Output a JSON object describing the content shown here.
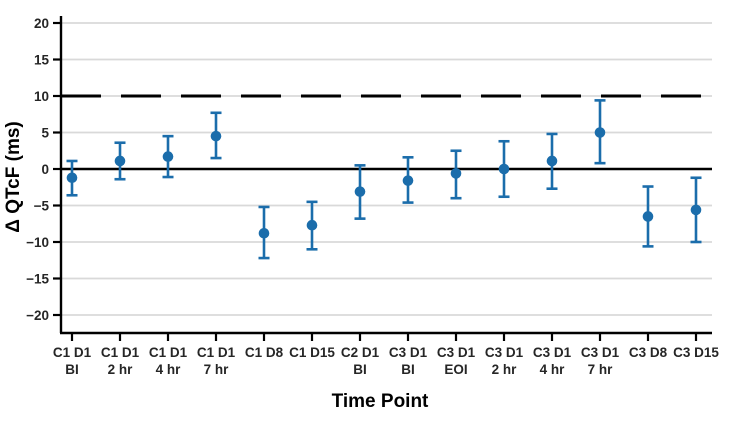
{
  "colors": {
    "point_blue": "#1b6dab",
    "grid_gray": "#d9d9d9",
    "axis_black": "#000000",
    "tick_text": "#262626",
    "background": "#ffffff"
  },
  "chart_data": {
    "type": "scatter",
    "title": "",
    "xlabel": "Time Point",
    "ylabel": "Δ QTcF (ms)",
    "ylim": [
      -22.5,
      21.5
    ],
    "grid": true,
    "legend": "none",
    "yticks": [
      {
        "value": 20,
        "label": "20"
      },
      {
        "value": 15,
        "label": "15"
      },
      {
        "value": 10,
        "label": "10"
      },
      {
        "value": 5,
        "label": "5"
      },
      {
        "value": 0,
        "label": "0"
      },
      {
        "value": -5,
        "label": "−5"
      },
      {
        "value": -10,
        "label": "−10"
      },
      {
        "value": -15,
        "label": "−15"
      },
      {
        "value": -20,
        "label": "−20"
      }
    ],
    "reference_lines": [
      {
        "y": 10,
        "style": "dashed",
        "color": "#000000"
      },
      {
        "y": 0,
        "style": "solid",
        "color": "#000000"
      }
    ],
    "categories": [
      {
        "line1": "C1 D1",
        "line2": "BI"
      },
      {
        "line1": "C1 D1",
        "line2": "2 hr"
      },
      {
        "line1": "C1 D1",
        "line2": "4 hr"
      },
      {
        "line1": "C1 D1",
        "line2": "7 hr"
      },
      {
        "line1": "C1 D8",
        "line2": ""
      },
      {
        "line1": "C1 D15",
        "line2": ""
      },
      {
        "line1": "C2 D1",
        "line2": "BI"
      },
      {
        "line1": "C3 D1",
        "line2": "BI"
      },
      {
        "line1": "C3 D1",
        "line2": "EOI"
      },
      {
        "line1": "C3 D1",
        "line2": "2 hr"
      },
      {
        "line1": "C3 D1",
        "line2": "4 hr"
      },
      {
        "line1": "C3 D1",
        "line2": "7 hr"
      },
      {
        "line1": "C3 D8",
        "line2": ""
      },
      {
        "line1": "C3 D15",
        "line2": ""
      }
    ],
    "series": [
      {
        "marker": "circle",
        "values": [
          -1.2,
          1.1,
          1.7,
          4.5,
          -8.8,
          -7.7,
          -3.1,
          -1.6,
          -0.6,
          0.0,
          1.1,
          5.0,
          -6.5,
          -5.6
        ],
        "ci_low": [
          -3.6,
          -1.4,
          -1.1,
          1.5,
          -12.2,
          -11.0,
          -6.8,
          -4.6,
          -4.0,
          -3.8,
          -2.7,
          0.8,
          -10.6,
          -10.0
        ],
        "ci_high": [
          1.1,
          3.6,
          4.5,
          7.7,
          -5.2,
          -4.5,
          0.5,
          1.6,
          2.5,
          3.8,
          4.8,
          9.4,
          -2.4,
          -1.2
        ]
      }
    ]
  }
}
